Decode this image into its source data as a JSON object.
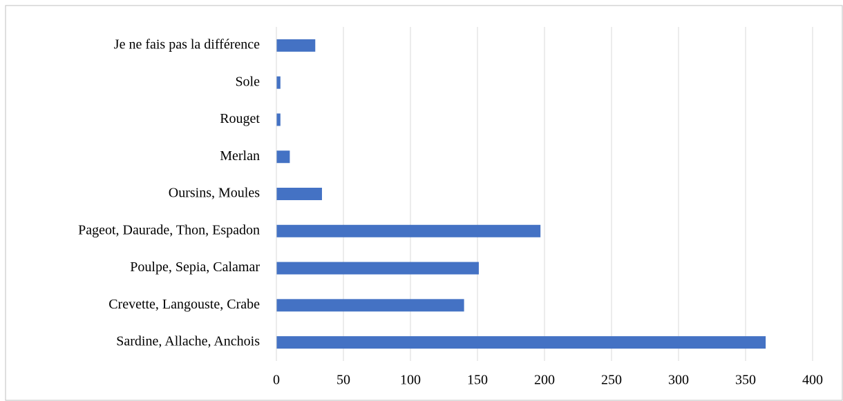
{
  "chart_data": {
    "type": "bar",
    "orientation": "horizontal",
    "categories": [
      "Je ne fais pas la différence",
      "Sole",
      "Rouget",
      "Merlan",
      "Oursins, Moules",
      "Pageot, Daurade, Thon, Espadon",
      "Poulpe, Sepia, Calamar",
      "Crevette, Langouste, Crabe",
      "Sardine, Allache, Anchois"
    ],
    "values": [
      29,
      3,
      3,
      10,
      34,
      197,
      151,
      140,
      365
    ],
    "color": "#4472c4",
    "xlim": [
      0,
      400
    ],
    "xticks": [
      0,
      50,
      100,
      150,
      200,
      250,
      300,
      350,
      400
    ],
    "grid": true
  }
}
